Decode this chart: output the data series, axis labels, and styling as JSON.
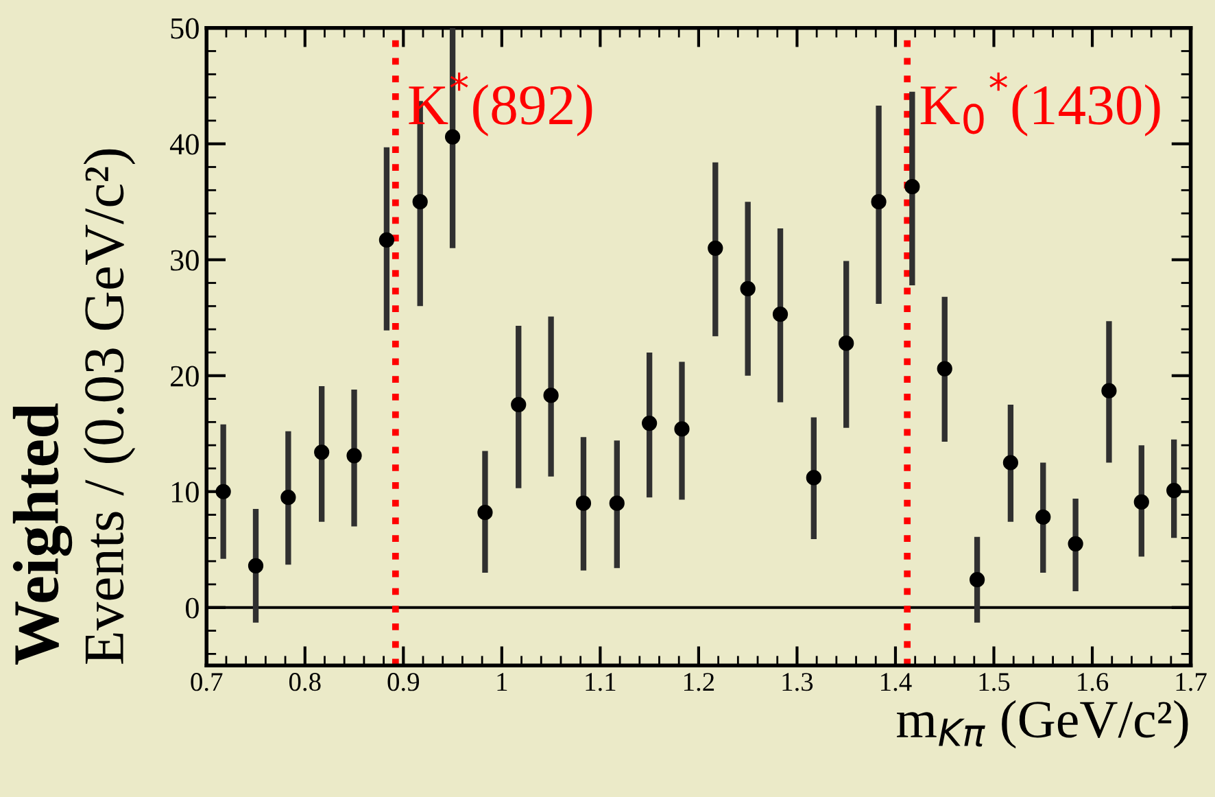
{
  "chart_data": {
    "type": "scatter",
    "xlabel": "m$_{Kπ}$ (GeV/c²)",
    "ylabel": [
      "Weighted",
      "Events / (0.03 GeV/c²)"
    ],
    "x": [
      0.717,
      0.75,
      0.783,
      0.817,
      0.85,
      0.883,
      0.917,
      0.95,
      0.983,
      1.017,
      1.05,
      1.083,
      1.117,
      1.15,
      1.183,
      1.217,
      1.25,
      1.283,
      1.317,
      1.35,
      1.383,
      1.417,
      1.45,
      1.483,
      1.517,
      1.55,
      1.583,
      1.617,
      1.65,
      1.683
    ],
    "values": [
      10.0,
      3.6,
      9.5,
      13.4,
      13.1,
      31.7,
      35.0,
      40.6,
      8.2,
      17.5,
      18.3,
      9.0,
      9.0,
      15.9,
      15.4,
      31.0,
      27.5,
      25.3,
      11.2,
      22.8,
      35.0,
      36.3,
      20.6,
      2.4,
      12.5,
      7.8,
      5.5,
      18.7,
      9.1,
      10.1
    ],
    "errors": [
      [
        4.2,
        15.8
      ],
      [
        -1.3,
        8.5
      ],
      [
        3.7,
        15.2
      ],
      [
        7.4,
        19.1
      ],
      [
        7.0,
        18.8
      ],
      [
        23.9,
        39.7
      ],
      [
        26.0,
        43.7
      ],
      [
        31.0,
        50
      ],
      [
        3.0,
        13.5
      ],
      [
        10.3,
        24.3
      ],
      [
        11.3,
        25.1
      ],
      [
        3.2,
        14.7
      ],
      [
        3.4,
        14.4
      ],
      [
        9.5,
        22.0
      ],
      [
        9.3,
        21.2
      ],
      [
        23.4,
        38.4
      ],
      [
        20.0,
        35.0
      ],
      [
        17.7,
        32.7
      ],
      [
        5.9,
        16.4
      ],
      [
        15.5,
        29.9
      ],
      [
        26.2,
        43.3
      ],
      [
        27.8,
        44.5
      ],
      [
        14.3,
        26.8
      ],
      [
        -1.3,
        6.1
      ],
      [
        7.4,
        17.5
      ],
      [
        3.0,
        12.5
      ],
      [
        1.4,
        9.4
      ],
      [
        12.5,
        24.7
      ],
      [
        4.4,
        14.0
      ],
      [
        6.0,
        14.5
      ]
    ],
    "color": "#000000",
    "marker": "circle",
    "xlim": [
      0.7,
      1.7
    ],
    "xticks": [
      0.7,
      0.8,
      0.9,
      1,
      1.1,
      1.2,
      1.3,
      1.4,
      1.5,
      1.6,
      1.7
    ],
    "ylim": [
      -5,
      50
    ],
    "yticks": [
      0,
      10,
      20,
      30,
      40,
      50
    ],
    "ref_lines": [
      {
        "axis": "x",
        "value": 0.892,
        "label": "K$^{*}$(892)",
        "color": "#ff0000",
        "line_style": "dotted"
      },
      {
        "axis": "x",
        "value": 1.412,
        "label": "K$_{0}$$^{*}$(1430)",
        "color": "#ff0000",
        "line_style": "dotted"
      },
      {
        "axis": "y",
        "value": 0,
        "label": null,
        "color": "#000000",
        "line_style": "solid"
      }
    ],
    "grid": false,
    "legend": false
  }
}
